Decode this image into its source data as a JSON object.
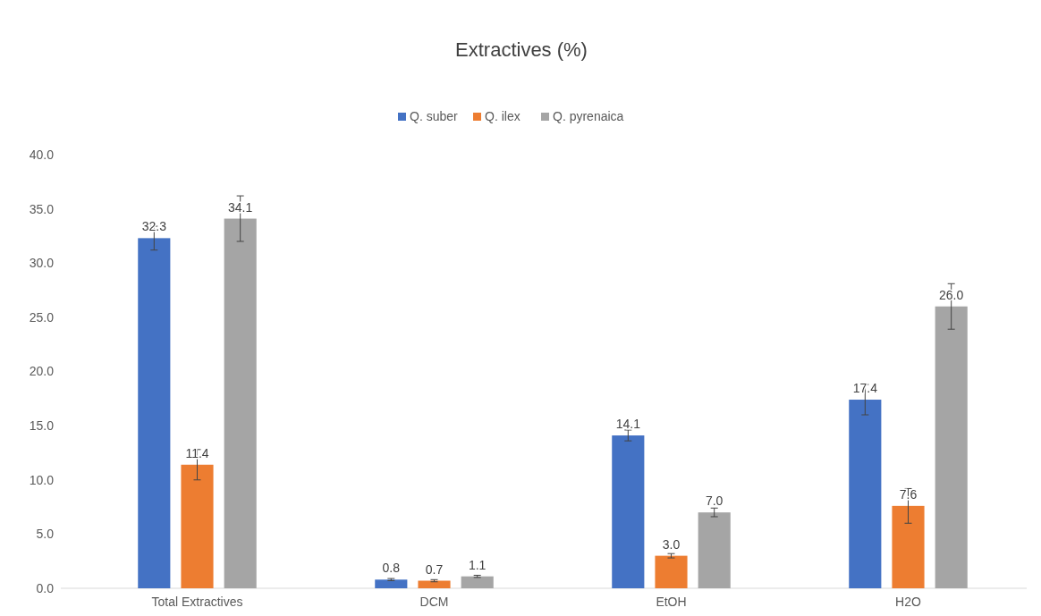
{
  "chart_data": {
    "type": "bar",
    "title": "Extractives (%)",
    "categories": [
      "Total Extractives",
      "DCM",
      "EtOH",
      "H2O"
    ],
    "series": [
      {
        "name": "Q. suber",
        "color": "#4472c4",
        "values": [
          32.3,
          0.8,
          14.1,
          17.4
        ],
        "errors": [
          1.1,
          0.1,
          0.5,
          1.4
        ],
        "value_labels": [
          "32.3",
          "0.8",
          "14.1",
          "17.4"
        ]
      },
      {
        "name": "Q. ilex",
        "color": "#ed7d31",
        "values": [
          11.4,
          0.7,
          3.0,
          7.6
        ],
        "errors": [
          1.4,
          0.1,
          0.2,
          1.6
        ],
        "value_labels": [
          "11.4",
          "0.7",
          "3.0",
          "7.6"
        ]
      },
      {
        "name": "Q. pyrenaica",
        "color": "#a5a5a5",
        "values": [
          34.1,
          1.1,
          7.0,
          26.0
        ],
        "errors": [
          2.1,
          0.1,
          0.4,
          2.1
        ],
        "value_labels": [
          "34.1",
          "1.1",
          "7.0",
          "26.0"
        ]
      }
    ],
    "ylim": [
      0,
      40
    ],
    "yticks": [
      {
        "value": 0,
        "label": "0.0"
      },
      {
        "value": 5,
        "label": "5.0"
      },
      {
        "value": 10,
        "label": "10.0"
      },
      {
        "value": 15,
        "label": "15.0"
      },
      {
        "value": 20,
        "label": "20.0"
      },
      {
        "value": 25,
        "label": "25.0"
      },
      {
        "value": 30,
        "label": "30.0"
      },
      {
        "value": 35,
        "label": "35.0"
      },
      {
        "value": 40,
        "label": "40.0"
      }
    ],
    "grid": false,
    "legend": "top"
  }
}
